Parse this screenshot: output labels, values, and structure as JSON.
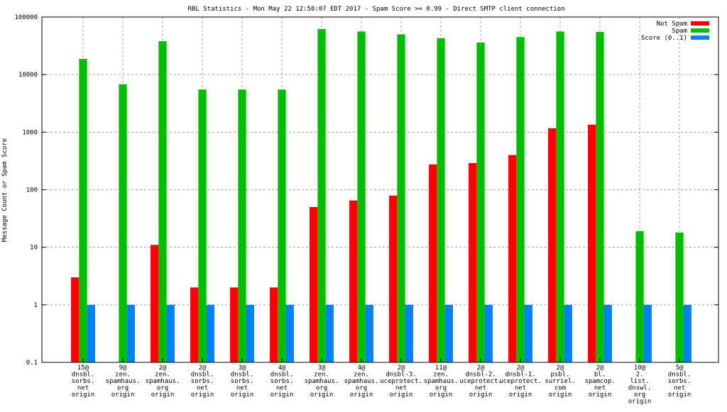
{
  "chart_data": {
    "type": "bar",
    "title": "RBL Statistics - Mon May 22 12:58:07 EDT 2017 - Spam Score >= 0.99 - Direct SMTP client connection",
    "xlabel": "",
    "ylabel": "Message Count or Spam Score",
    "yscale": "log",
    "ylim": [
      0.1,
      100000
    ],
    "yticks": [
      "0.1",
      "1",
      "10",
      "100",
      "1000",
      "10000",
      "100000"
    ],
    "grid": true,
    "legend_position": "top-right",
    "categories": [
      [
        "15@",
        "dnsbl.",
        "sorbs.",
        "net",
        "origin"
      ],
      [
        "9@",
        "zen.",
        "spamhaus.",
        "org",
        "origin"
      ],
      [
        "2@",
        "zen.",
        "spamhaus.",
        "org",
        "origin"
      ],
      [
        "2@",
        "dnsbl.",
        "sorbs.",
        "net",
        "origin"
      ],
      [
        "3@",
        "dnsbl.",
        "sorbs.",
        "net",
        "origin"
      ],
      [
        "4@",
        "dnsbl.",
        "sorbs.",
        "net",
        "origin"
      ],
      [
        "3@",
        "zen.",
        "spamhaus.",
        "org",
        "origin"
      ],
      [
        "4@",
        "zen.",
        "spamhaus.",
        "org",
        "origin"
      ],
      [
        "2@",
        "dnsbl-3.",
        "uceprotect.",
        "net",
        "origin"
      ],
      [
        "11@",
        "zen.",
        "spamhaus.",
        "org",
        "origin"
      ],
      [
        "2@",
        "dnsbl-2.",
        "uceprotect.",
        "net",
        "origin"
      ],
      [
        "2@",
        "dnsbl-1.",
        "uceprotect.",
        "net",
        "origin"
      ],
      [
        "2@",
        "psbl.",
        "surriel.",
        "com",
        "origin"
      ],
      [
        "2@",
        "bl.",
        "spamcop.",
        "net",
        "origin"
      ],
      [
        "10@",
        "2.",
        "list.",
        "dnswl.",
        "org",
        "origin"
      ],
      [
        "5@",
        "dnsbl.",
        "sorbs.",
        "net",
        "origin"
      ]
    ],
    "series": [
      {
        "name": "Not Spam",
        "color": "#ff0000",
        "values": [
          3,
          0,
          11,
          2,
          2,
          2,
          50,
          65,
          79,
          275,
          290,
          400,
          1170,
          1350,
          0,
          0
        ]
      },
      {
        "name": "Spam",
        "color": "#00c000",
        "values": [
          18700,
          6800,
          38000,
          5500,
          5500,
          5500,
          62000,
          56000,
          50000,
          43000,
          36000,
          45000,
          56000,
          55000,
          19,
          18
        ]
      },
      {
        "name": "Score (0..1)",
        "color": "#0080ff",
        "values": [
          1,
          1,
          1,
          1,
          1,
          1,
          1,
          1,
          1,
          1,
          1,
          1,
          1,
          1,
          1,
          1
        ]
      }
    ]
  }
}
